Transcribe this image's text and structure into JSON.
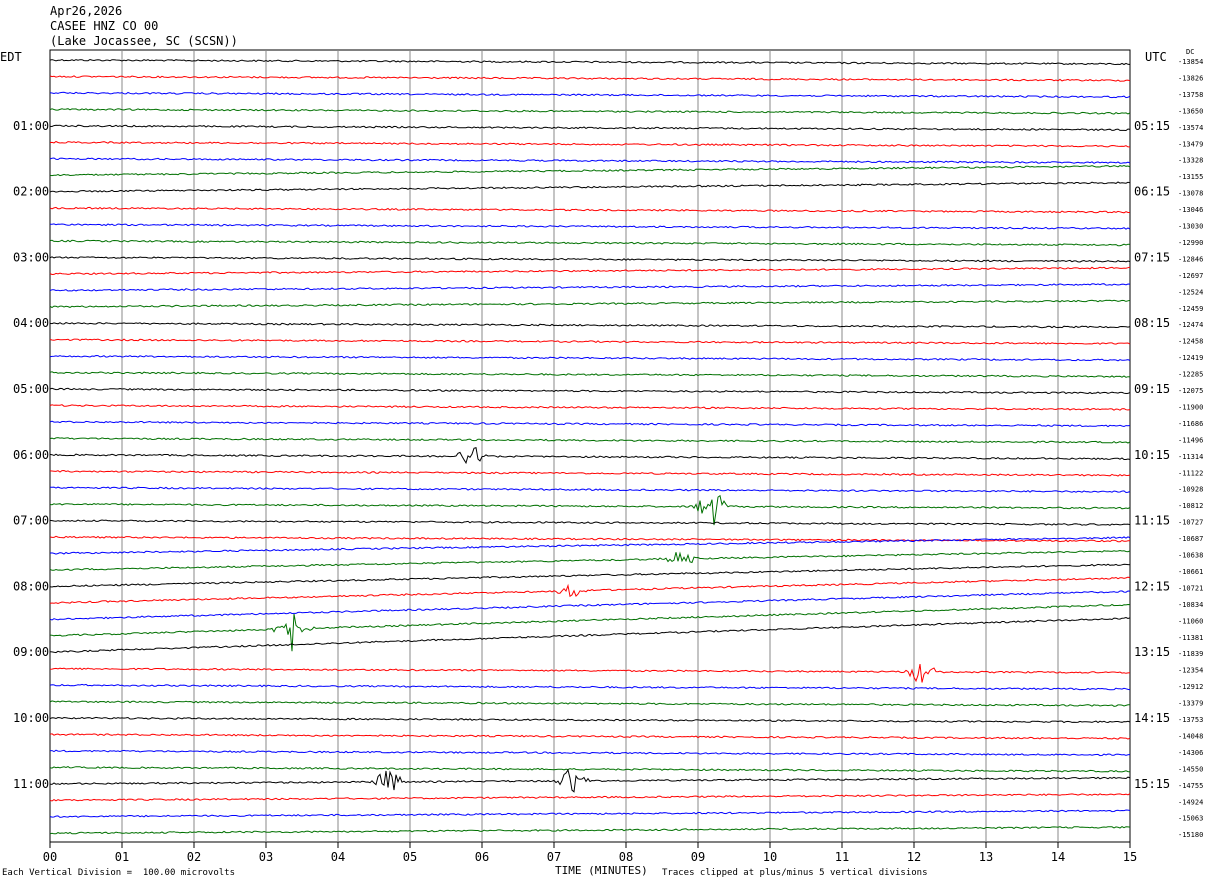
{
  "header": {
    "date": "Apr26,2026",
    "station": "CASEE HNZ CO 00",
    "location": "(Lake Jocassee, SC (SCSN))"
  },
  "left_axis_label": "EDT",
  "right_axis_label": "UTC",
  "dc_label": "DC",
  "footer": {
    "scale_note": "Each Vertical Division =  100.00 microvolts",
    "clip_note": "Traces clipped at plus/minus 5 vertical divisions"
  },
  "chart_data": {
    "type": "line",
    "title": "",
    "xlabel": "TIME (MINUTES)",
    "xlim": [
      0,
      15
    ],
    "x_ticks": [
      "00",
      "01",
      "02",
      "03",
      "04",
      "05",
      "06",
      "07",
      "08",
      "09",
      "10",
      "11",
      "12",
      "13",
      "14",
      "15"
    ],
    "left_time_labels": [
      "01:00",
      "02:00",
      "03:00",
      "04:00",
      "05:00",
      "06:00",
      "07:00",
      "08:00",
      "09:00",
      "10:00",
      "11:00"
    ],
    "right_time_labels": [
      "05:15",
      "06:15",
      "07:15",
      "08:15",
      "09:15",
      "10:15",
      "11:15",
      "12:15",
      "13:15",
      "14:15",
      "15:15"
    ],
    "dc_offsets": [
      "-13854",
      "-13826",
      "-13758",
      "-13650",
      "-13574",
      "-13479",
      "-13328",
      "-13155",
      "-13078",
      "-13046",
      "-13030",
      "-12990",
      "-12846",
      "-12697",
      "-12524",
      "-12459",
      "-12474",
      "-12458",
      "-12419",
      "-12285",
      "-12075",
      "-11900",
      "-11686",
      "-11496",
      "-11314",
      "-11122",
      "-10928",
      "-10812",
      "-10727",
      "-10687",
      "-10638",
      "-10661",
      "-10721",
      "-10834",
      "-11060",
      "-11381",
      "-11839",
      "-12354",
      "-12912",
      "-13379",
      "-13753",
      "-14048",
      "-14306",
      "-14550",
      "-14755",
      "-14924",
      "-15063",
      "-15180"
    ],
    "trace_colors": [
      "#000000",
      "#ff0000",
      "#0000ff",
      "#007000"
    ],
    "events": [
      {
        "trace": 24,
        "minute": 5.85,
        "amp": 1.3
      },
      {
        "trace": 27,
        "minute": 9.2,
        "amp": 2.4
      },
      {
        "trace": 31,
        "minute": 8.75,
        "amp": 1.1
      },
      {
        "trace": 35,
        "minute": 3.35,
        "amp": 3.0
      },
      {
        "trace": 33,
        "minute": 7.25,
        "amp": 0.8
      },
      {
        "trace": 37,
        "minute": 12.1,
        "amp": 1.4
      },
      {
        "trace": 44,
        "minute": 4.7,
        "amp": 1.5
      },
      {
        "trace": 44,
        "minute": 7.25,
        "amp": 1.5
      }
    ]
  }
}
